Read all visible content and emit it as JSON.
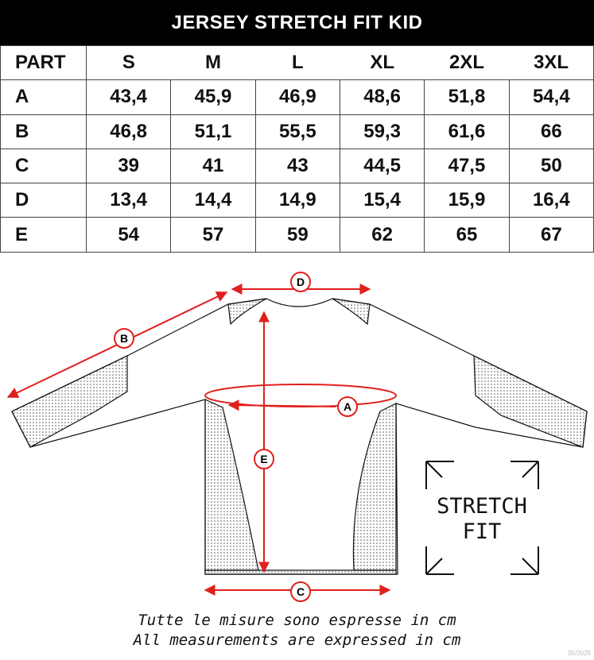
{
  "title": "JERSEY STRETCH FIT KID",
  "table": {
    "headers": [
      "PART",
      "S",
      "M",
      "L",
      "XL",
      "2XL",
      "3XL"
    ],
    "rows": [
      [
        "A",
        "43,4",
        "45,9",
        "46,9",
        "48,6",
        "51,8",
        "54,4"
      ],
      [
        "B",
        "46,8",
        "51,1",
        "55,5",
        "59,3",
        "61,6",
        "66"
      ],
      [
        "C",
        "39",
        "41",
        "43",
        "44,5",
        "47,5",
        "50"
      ],
      [
        "D",
        "13,4",
        "14,4",
        "14,9",
        "15,4",
        "15,9",
        "16,4"
      ],
      [
        "E",
        "54",
        "57",
        "59",
        "62",
        "65",
        "67"
      ]
    ]
  },
  "diagram": {
    "labels": [
      "A",
      "B",
      "C",
      "D",
      "E"
    ],
    "badge_line1": "STRETCH",
    "badge_line2": "FIT",
    "accent": "#e0201c"
  },
  "notes": {
    "it": "Tutte le misure sono espresse in cm",
    "en": "All measurements are expressed in cm"
  },
  "version": "05/2025"
}
